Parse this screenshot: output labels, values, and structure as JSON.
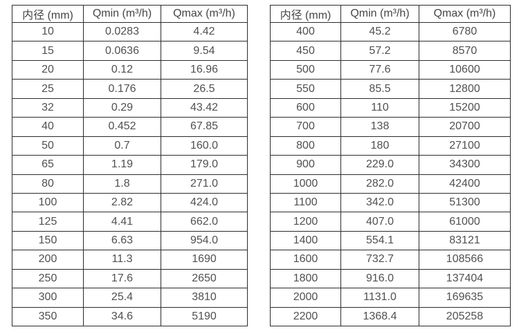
{
  "page": {
    "background": "#ffffff"
  },
  "colors": {
    "border": "#2b2b2b",
    "header_text": "#454545",
    "cell_text": "#505050"
  },
  "tables": {
    "left": {
      "headers": [
        "内径 (mm)",
        "Qmin (m³/h)",
        "Qmax (m³/h)"
      ],
      "rows": [
        [
          "10",
          "0.0283",
          "4.42"
        ],
        [
          "15",
          "0.0636",
          "9.54"
        ],
        [
          "20",
          "0.12",
          "16.96"
        ],
        [
          "25",
          "0.176",
          "26.5"
        ],
        [
          "32",
          "0.29",
          "43.42"
        ],
        [
          "40",
          "0.452",
          "67.85"
        ],
        [
          "50",
          "0.7",
          "160.0"
        ],
        [
          "65",
          "1.19",
          "179.0"
        ],
        [
          "80",
          "1.8",
          "271.0"
        ],
        [
          "100",
          "2.82",
          "424.0"
        ],
        [
          "125",
          "4.41",
          "662.0"
        ],
        [
          "150",
          "6.63",
          "954.0"
        ],
        [
          "200",
          "11.3",
          "1690"
        ],
        [
          "250",
          "17.6",
          "2650"
        ],
        [
          "300",
          "25.4",
          "3810"
        ],
        [
          "350",
          "34.6",
          "5190"
        ]
      ]
    },
    "right": {
      "headers": [
        "内径 (mm)",
        "Qmin (m³/h)",
        "Qmax (m³/h)"
      ],
      "rows": [
        [
          "400",
          "45.2",
          "6780"
        ],
        [
          "450",
          "57.2",
          "8570"
        ],
        [
          "500",
          "77.6",
          "10600"
        ],
        [
          "550",
          "85.5",
          "12800"
        ],
        [
          "600",
          "110",
          "15200"
        ],
        [
          "700",
          "138",
          "20700"
        ],
        [
          "800",
          "180",
          "27100"
        ],
        [
          "900",
          "229.0",
          "34300"
        ],
        [
          "1000",
          "282.0",
          "42400"
        ],
        [
          "1100",
          "342.0",
          "51300"
        ],
        [
          "1200",
          "407.0",
          "61000"
        ],
        [
          "1400",
          "554.1",
          "83121"
        ],
        [
          "1600",
          "732.7",
          "108566"
        ],
        [
          "1800",
          "916.0",
          "137404"
        ],
        [
          "2000",
          "1131.0",
          "169635"
        ],
        [
          "2200",
          "1368.4",
          "205258"
        ]
      ]
    }
  }
}
